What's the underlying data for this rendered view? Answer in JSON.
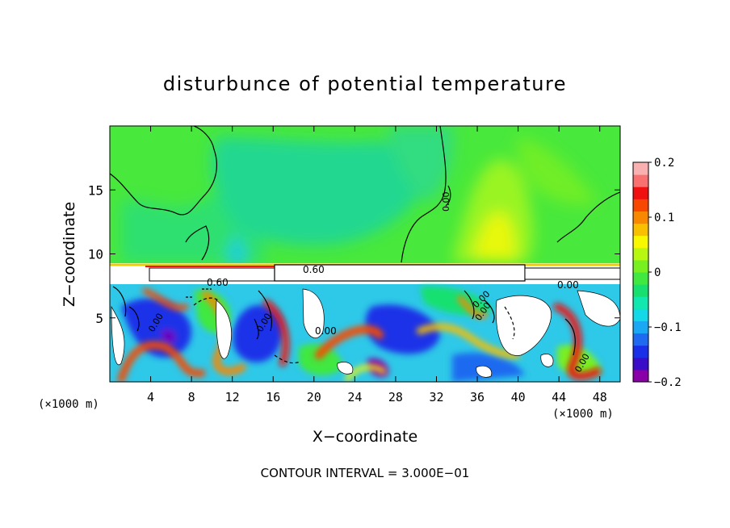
{
  "chart_data": {
    "type": "heatmap",
    "title": "disturbunce of potential temperature",
    "xlabel": "X−coordinate",
    "ylabel": "Z−coordinate",
    "x_unit_label": "(×1000 m)",
    "y_unit_label": "(×1000 m)",
    "footer": "CONTOUR INTERVAL = 3.000E−01",
    "xlim": [
      0,
      50
    ],
    "ylim": [
      0,
      20
    ],
    "x_ticks": [
      4,
      8,
      12,
      16,
      20,
      24,
      28,
      32,
      36,
      40,
      44,
      48
    ],
    "x_tick_labels": [
      "4",
      "8",
      "12",
      "16",
      "20",
      "24",
      "28",
      "32",
      "36",
      "40",
      "44",
      "48"
    ],
    "y_ticks": [
      5,
      10,
      15
    ],
    "y_tick_labels": [
      "5",
      "10",
      "15"
    ],
    "colorbar": {
      "range": [
        -0.2,
        0.2
      ],
      "tick_values": [
        0.2,
        0.1,
        0,
        -0.1,
        -0.2
      ],
      "tick_labels": [
        "0.2",
        "0.1",
        "0",
        "−0.1",
        "−0.2"
      ],
      "colors": [
        "#8a00a8",
        "#3a0ec8",
        "#1a30e8",
        "#1e6af0",
        "#1aa8f5",
        "#12d8e8",
        "#10e8b0",
        "#18e070",
        "#40e840",
        "#78f020",
        "#b8f810",
        "#f8f800",
        "#f8c000",
        "#f88800",
        "#f84800",
        "#f01010",
        "#f87070",
        "#f8b0b0"
      ]
    },
    "annotations": [
      "0.60",
      "0.60",
      "0.00",
      "0.00",
      "0.00",
      "0.00",
      "0.00",
      "0.00",
      "0.00",
      "0.00"
    ],
    "fields": {
      "upper_background": 0.02,
      "upper_left_cool_band": -0.03,
      "upper_right_warm_plume": 0.09,
      "lower_layer_amplitude": 0.2
    }
  }
}
